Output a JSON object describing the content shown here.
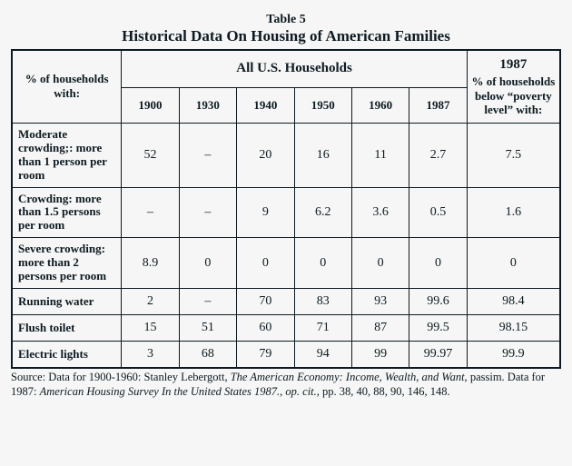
{
  "table_number": "Table 5",
  "title": "Historical Data On Housing of American Families",
  "superheader": "All U.S. Households",
  "left_header": "% of households with:",
  "poverty_header": {
    "year": "1987",
    "text": "% of households below “poverty level” with:"
  },
  "years": [
    "1900",
    "1930",
    "1940",
    "1950",
    "1960",
    "1987"
  ],
  "rows": [
    {
      "label": "Moderate crowding;: more than 1 person per room",
      "values": [
        "52",
        "–",
        "20",
        "16",
        "11",
        "2.7"
      ],
      "poverty": "7.5"
    },
    {
      "label": "Crowding: more than 1.5 persons per room",
      "values": [
        "–",
        "–",
        "9",
        "6.2",
        "3.6",
        "0.5"
      ],
      "poverty": "1.6"
    },
    {
      "label": "Severe crowding: more than 2 persons per room",
      "values": [
        "8.9",
        "0",
        "0",
        "0",
        "0",
        "0"
      ],
      "poverty": "0"
    },
    {
      "label": "Running water",
      "values": [
        "2",
        "–",
        "70",
        "83",
        "93",
        "99.6"
      ],
      "poverty": "98.4"
    },
    {
      "label": "Flush toilet",
      "values": [
        "15",
        "51",
        "60",
        "71",
        "87",
        "99.5"
      ],
      "poverty": "98.15"
    },
    {
      "label": "Electric lights",
      "values": [
        "3",
        "68",
        "79",
        "94",
        "99",
        "99.97"
      ],
      "poverty": "99.9"
    }
  ],
  "source": {
    "prefix": "Source: Data for 1900-1960: Stanley Lebergott, ",
    "italic1": "The American Economy: Income, Wealth, and Want,",
    "mid": " passim.  Data for 1987: ",
    "italic2": "American Housing Survey In the United States 1987., op. cit.,",
    "suffix": " pp. 38, 40, 88, 90, 146, 148."
  },
  "col_widths": {
    "rowhead_pct": 20,
    "year_pct": 10.5,
    "poverty_pct": 17
  }
}
